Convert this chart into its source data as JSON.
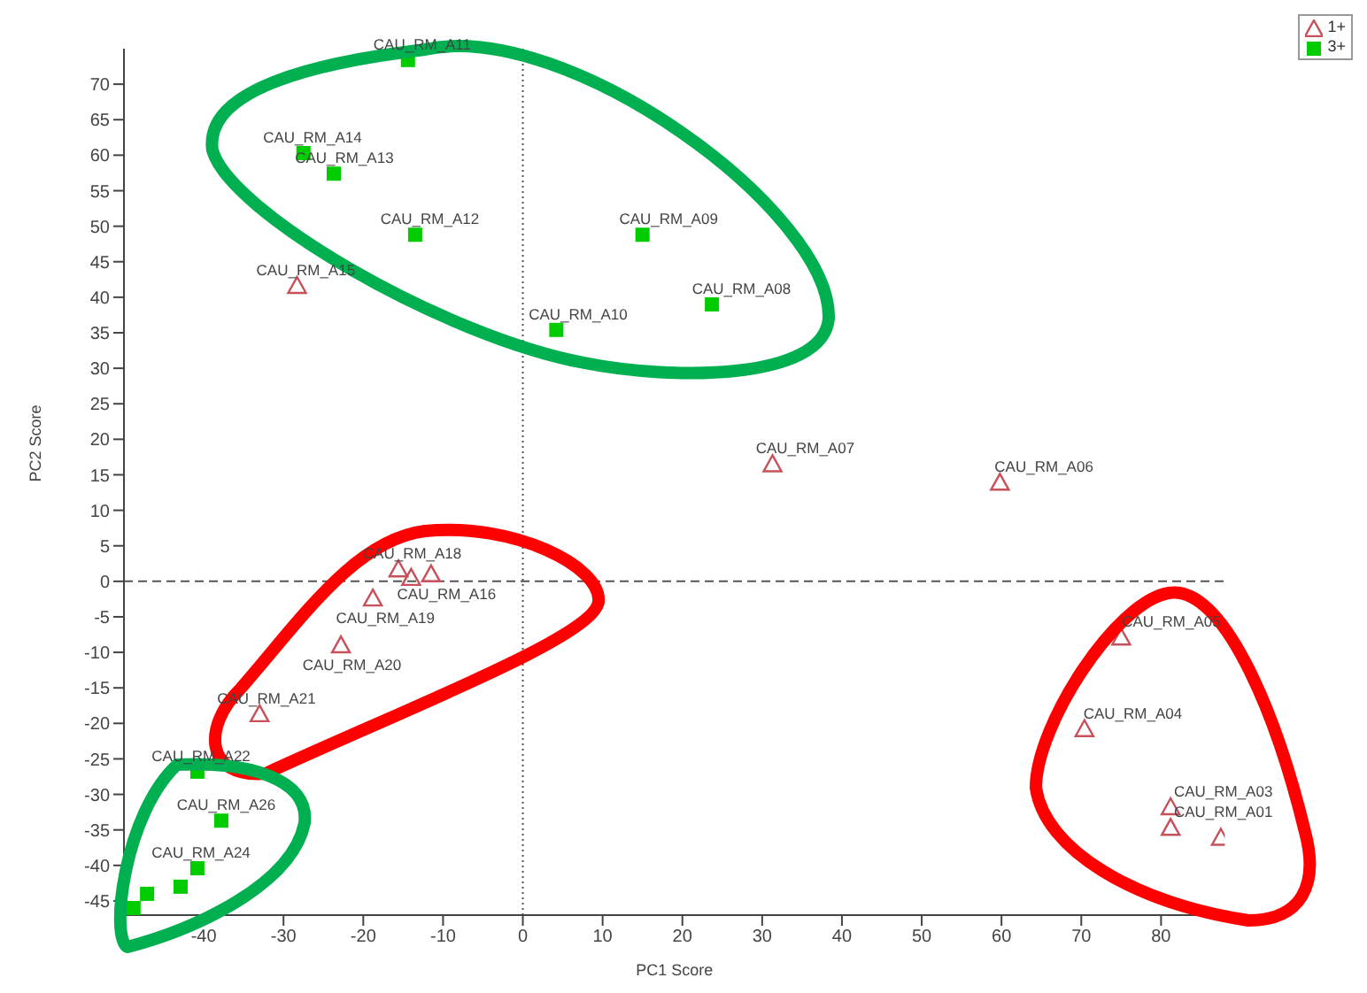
{
  "chart_data": {
    "type": "scatter",
    "xlabel": "PC1 Score",
    "ylabel": "PC2 Score",
    "xlim": [
      -50,
      88
    ],
    "xticks": [
      -40,
      -30,
      -20,
      -10,
      0,
      10,
      20,
      30,
      40,
      50,
      60,
      70,
      80
    ],
    "ylim": [
      -47,
      75
    ],
    "yticks": [
      -45,
      -40,
      -35,
      -30,
      -25,
      -20,
      -15,
      -10,
      -5,
      0,
      5,
      10,
      15,
      20,
      25,
      30,
      35,
      40,
      45,
      50,
      55,
      60,
      65,
      70
    ],
    "grid": false,
    "legend": "top right",
    "ref_lines": [
      {
        "axis": "x",
        "value": 0,
        "line_style": "dotted",
        "color": "#555555"
      },
      {
        "axis": "y",
        "value": 0,
        "line_style": "dashed",
        "color": "#555555"
      }
    ],
    "series": [
      {
        "name": "1+",
        "color": "#c8505a",
        "marker": "triangle",
        "x": [
          -28.3,
          31.3,
          59.8,
          -15.6,
          -14,
          -11.5,
          -18.8,
          -22.8,
          -33,
          75,
          70.4,
          81.2,
          81.2,
          87.5
        ],
        "values": [
          41.6,
          16.5,
          13.9,
          1.7,
          0.5,
          1,
          -2.4,
          -9,
          -18.7,
          -7.9,
          -20.8,
          -31.8,
          -34.7,
          -36.1
        ]
      },
      {
        "name": "3+",
        "color": "#00cc00",
        "marker": "square",
        "x": [
          -14.4,
          -27.5,
          -23.7,
          -13.5,
          15,
          23.7,
          4.2,
          -40.8,
          -37.8,
          -40.8,
          -42.9,
          -47.1,
          -48.8
        ],
        "values": [
          73.4,
          60.3,
          57.4,
          48.8,
          48.8,
          39,
          35.4,
          -26.8,
          -33.7,
          -40.4,
          -43,
          -44,
          -46
        ]
      }
    ],
    "annotations": [
      {
        "text": "CAU_RM_A11",
        "x": -14.4,
        "y": 73.4
      },
      {
        "text": "CAU_RM_A14",
        "x": -27.5,
        "y": 60.3
      },
      {
        "text": "CAU_RM_A13",
        "x": -23.7,
        "y": 57.4
      },
      {
        "text": "CAU_RM_A12",
        "x": -13.5,
        "y": 48.8
      },
      {
        "text": "CAU_RM_A09",
        "x": 15,
        "y": 48.8
      },
      {
        "text": "CAU_RM_A08",
        "x": 23.7,
        "y": 39
      },
      {
        "text": "CAU_RM_A10",
        "x": 4.2,
        "y": 35.4
      },
      {
        "text": "CAU_RM_A15",
        "x": -28.3,
        "y": 41.6
      },
      {
        "text": "CAU_RM_A07",
        "x": 31.3,
        "y": 16.5
      },
      {
        "text": "CAU_RM_A06",
        "x": 59.8,
        "y": 13.9
      },
      {
        "text": "CAU_RM_A18",
        "x": -15.6,
        "y": 1.7
      },
      {
        "text": "CAU_RM_A19",
        "x": -18.8,
        "y": -2.4
      },
      {
        "text": "CAU_RM_A16",
        "x": -11.5,
        "y": 1
      },
      {
        "text": "CAU_RM_A20",
        "x": -22.8,
        "y": -9
      },
      {
        "text": "CAU_RM_A21",
        "x": -33,
        "y": -18.7
      },
      {
        "text": "CAU_RM_A05",
        "x": 75,
        "y": -7.9
      },
      {
        "text": "CAU_RM_A04",
        "x": 70.4,
        "y": -20.8
      },
      {
        "text": "CAU_RM_A03",
        "x": 81.2,
        "y": -31.8
      },
      {
        "text": "CAU_RM_A01",
        "x": 81.2,
        "y": -34.7
      },
      {
        "text": "CAU_RM_A22",
        "x": -40.8,
        "y": -26.8
      },
      {
        "text": "CAU_RM_A26",
        "x": -37.8,
        "y": -33.7
      },
      {
        "text": "CAU_RM_A24",
        "x": -40.8,
        "y": -40.4
      }
    ]
  }
}
